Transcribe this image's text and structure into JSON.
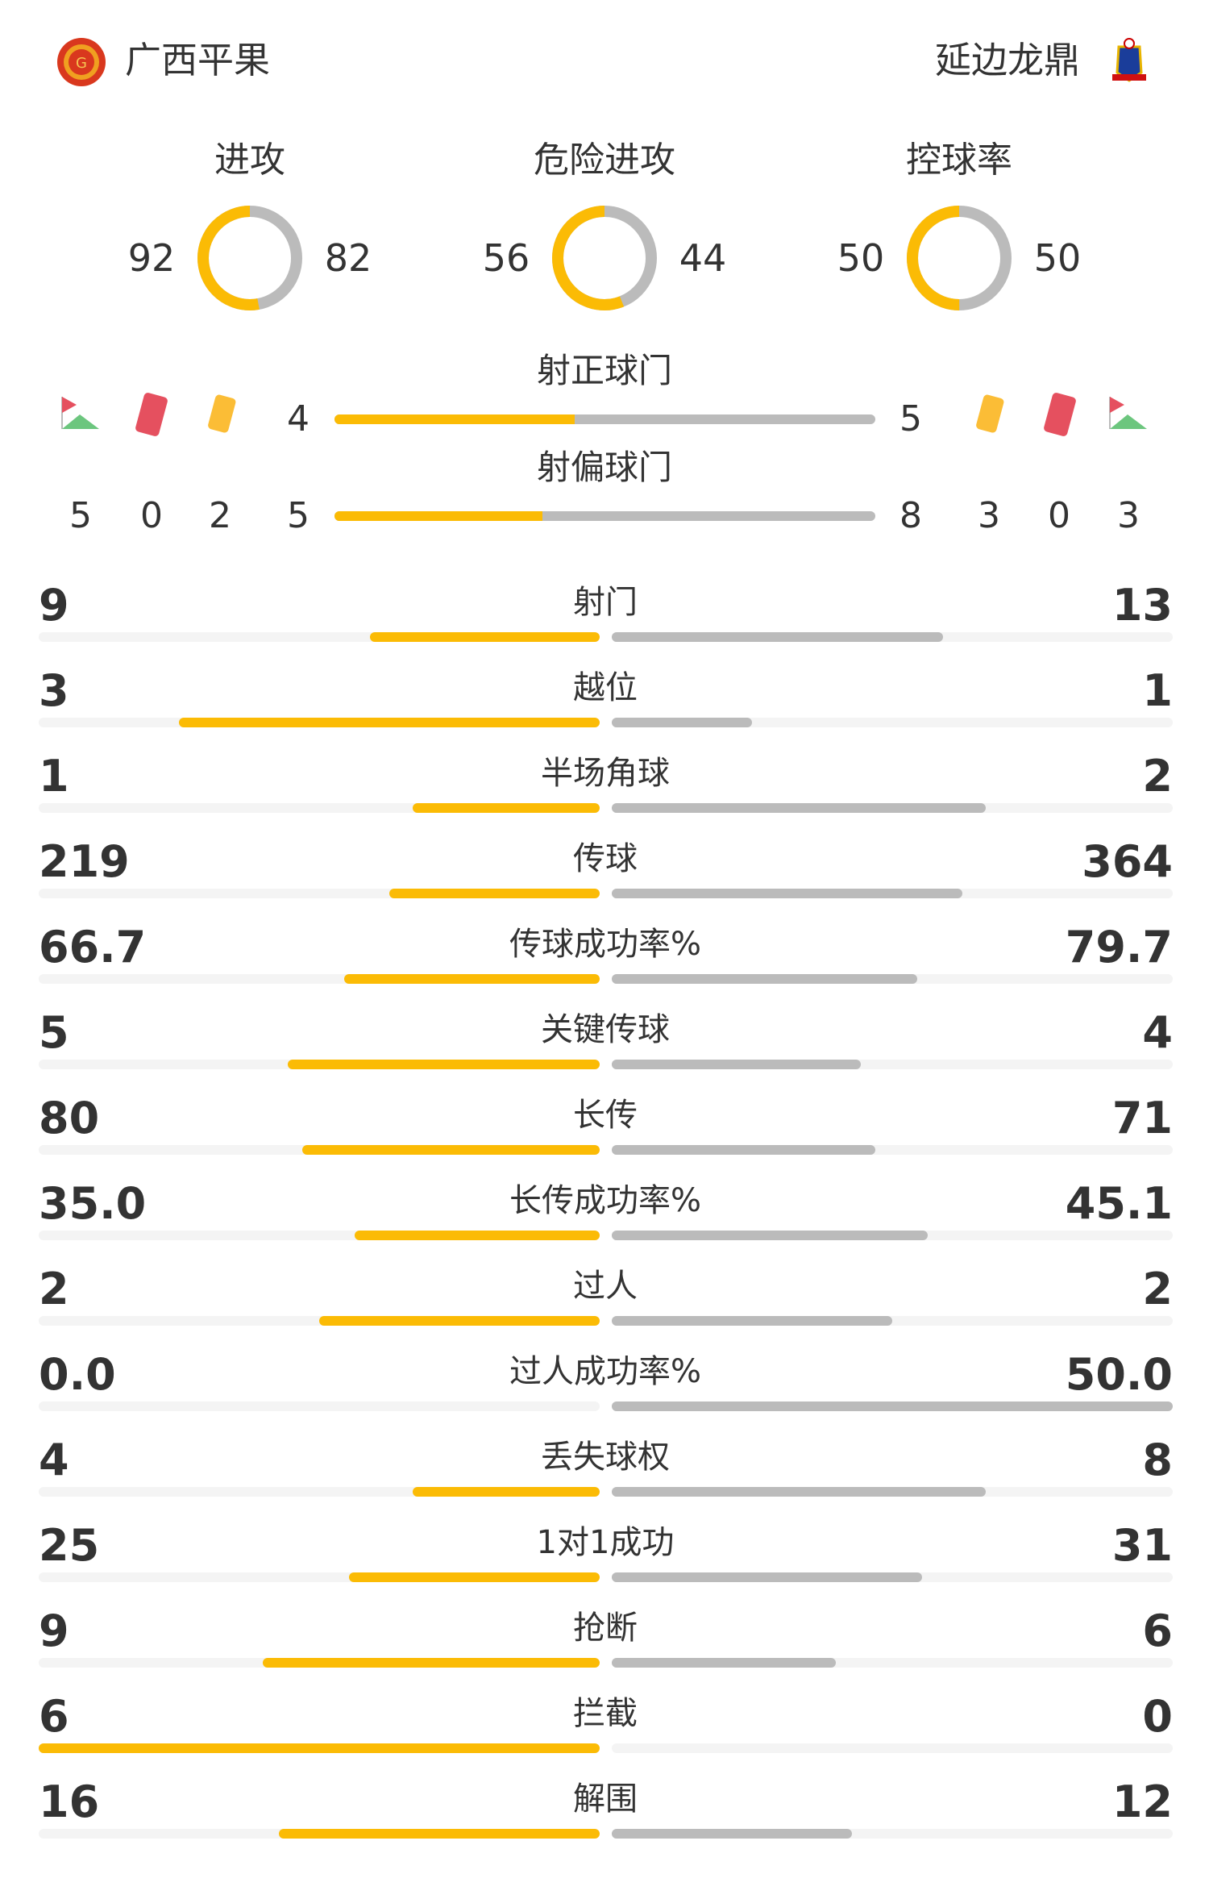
{
  "colors": {
    "home": "#fbbb05",
    "away": "#bbbbbb",
    "track": "#f4f4f4",
    "text": "#333333"
  },
  "header": {
    "home_team": "广西平果",
    "away_team": "延边龙鼎",
    "home_logo": "guangxi-pingguo-crest",
    "away_logo": "yanbian-longding-crest"
  },
  "donuts": [
    {
      "label": "进攻",
      "home": 92,
      "away": 82
    },
    {
      "label": "危险进攻",
      "home": 56,
      "away": 44
    },
    {
      "label": "控球率",
      "home": 50,
      "away": 50
    }
  ],
  "shots": {
    "on_target": {
      "label": "射正球门",
      "home": 4,
      "away": 5
    },
    "off_target": {
      "label": "射偏球门",
      "home": 5,
      "away": 8
    }
  },
  "cards": {
    "home": {
      "corners": 5,
      "red": 0,
      "yellow": 2
    },
    "away": {
      "yellow": 3,
      "red": 0,
      "corners": 3
    }
  },
  "stats": [
    {
      "label": "射门",
      "home": "9",
      "away": "13"
    },
    {
      "label": "越位",
      "home": "3",
      "away": "1"
    },
    {
      "label": "半场角球",
      "home": "1",
      "away": "2"
    },
    {
      "label": "传球",
      "home": "219",
      "away": "364"
    },
    {
      "label": "传球成功率%",
      "home": "66.7",
      "away": "79.7"
    },
    {
      "label": "关键传球",
      "home": "5",
      "away": "4"
    },
    {
      "label": "长传",
      "home": "80",
      "away": "71"
    },
    {
      "label": "长传成功率%",
      "home": "35.0",
      "away": "45.1"
    },
    {
      "label": "过人",
      "home": "2",
      "away": "2"
    },
    {
      "label": "过人成功率%",
      "home": "0.0",
      "away": "50.0"
    },
    {
      "label": "丢失球权",
      "home": "4",
      "away": "8"
    },
    {
      "label": "1对1成功",
      "home": "25",
      "away": "31"
    },
    {
      "label": "抢断",
      "home": "9",
      "away": "6"
    },
    {
      "label": "拦截",
      "home": "6",
      "away": "0"
    },
    {
      "label": "解围",
      "home": "16",
      "away": "12"
    }
  ]
}
